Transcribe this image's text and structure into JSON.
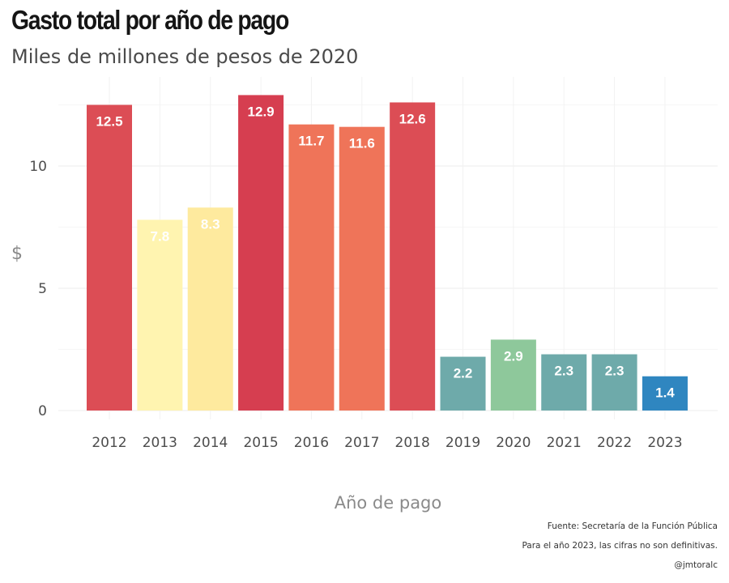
{
  "header": {
    "title": "Gasto total por año de pago",
    "subtitle": "Miles de millones de pesos de 2020"
  },
  "footer": {
    "source": "Fuente: Secretaría de la Función Pública",
    "note": "Para el año 2023, las cifras no son definitivas.",
    "handle": "@jmtoralc"
  },
  "chart_data": {
    "type": "bar",
    "title": "Gasto total por año de pago",
    "subtitle": "Miles de millones de pesos de 2020",
    "xlabel": "Año de pago",
    "ylabel": "$",
    "categories": [
      "2012",
      "2013",
      "2014",
      "2015",
      "2016",
      "2017",
      "2018",
      "2019",
      "2020",
      "2021",
      "2022",
      "2023"
    ],
    "values": [
      12.5,
      7.8,
      8.3,
      12.9,
      11.7,
      11.6,
      12.6,
      2.2,
      2.9,
      2.3,
      2.3,
      1.4
    ],
    "value_labels": [
      "12.5",
      "7.8",
      "8.3",
      "12.9",
      "11.7",
      "11.6",
      "12.6",
      "2.2",
      "2.9",
      "2.3",
      "2.3",
      "1.4"
    ],
    "colors": [
      "#dc4d55",
      "#fff4b0",
      "#feea9e",
      "#d63e50",
      "#ef7459",
      "#ef7459",
      "#dc4d55",
      "#6eaaaa",
      "#8ec89b",
      "#6eaaaa",
      "#6eaaaa",
      "#2f86c0"
    ],
    "yticks": [
      0,
      5,
      10
    ],
    "ylim": [
      0,
      13.6
    ],
    "grid": true,
    "legend": "none"
  }
}
